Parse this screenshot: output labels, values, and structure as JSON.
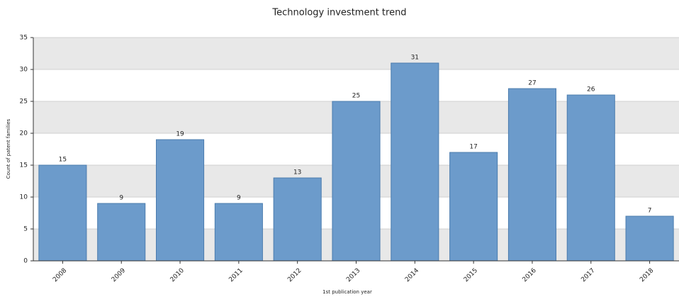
{
  "chart_data": {
    "type": "bar",
    "title": "Technology investment trend",
    "x_label": "1st publication year",
    "y_label": "Count of patent families",
    "categories": [
      "2008",
      "2009",
      "2010",
      "2011",
      "2012",
      "2013",
      "2014",
      "2015",
      "2016",
      "2017",
      "2018"
    ],
    "values": [
      15,
      9,
      19,
      9,
      13,
      25,
      31,
      17,
      27,
      26,
      7
    ],
    "color": "#6c9bcb",
    "ylim": [
      0,
      35
    ],
    "yticks": [
      0,
      5,
      10,
      15,
      20,
      25,
      30,
      35
    ],
    "grid": true
  }
}
